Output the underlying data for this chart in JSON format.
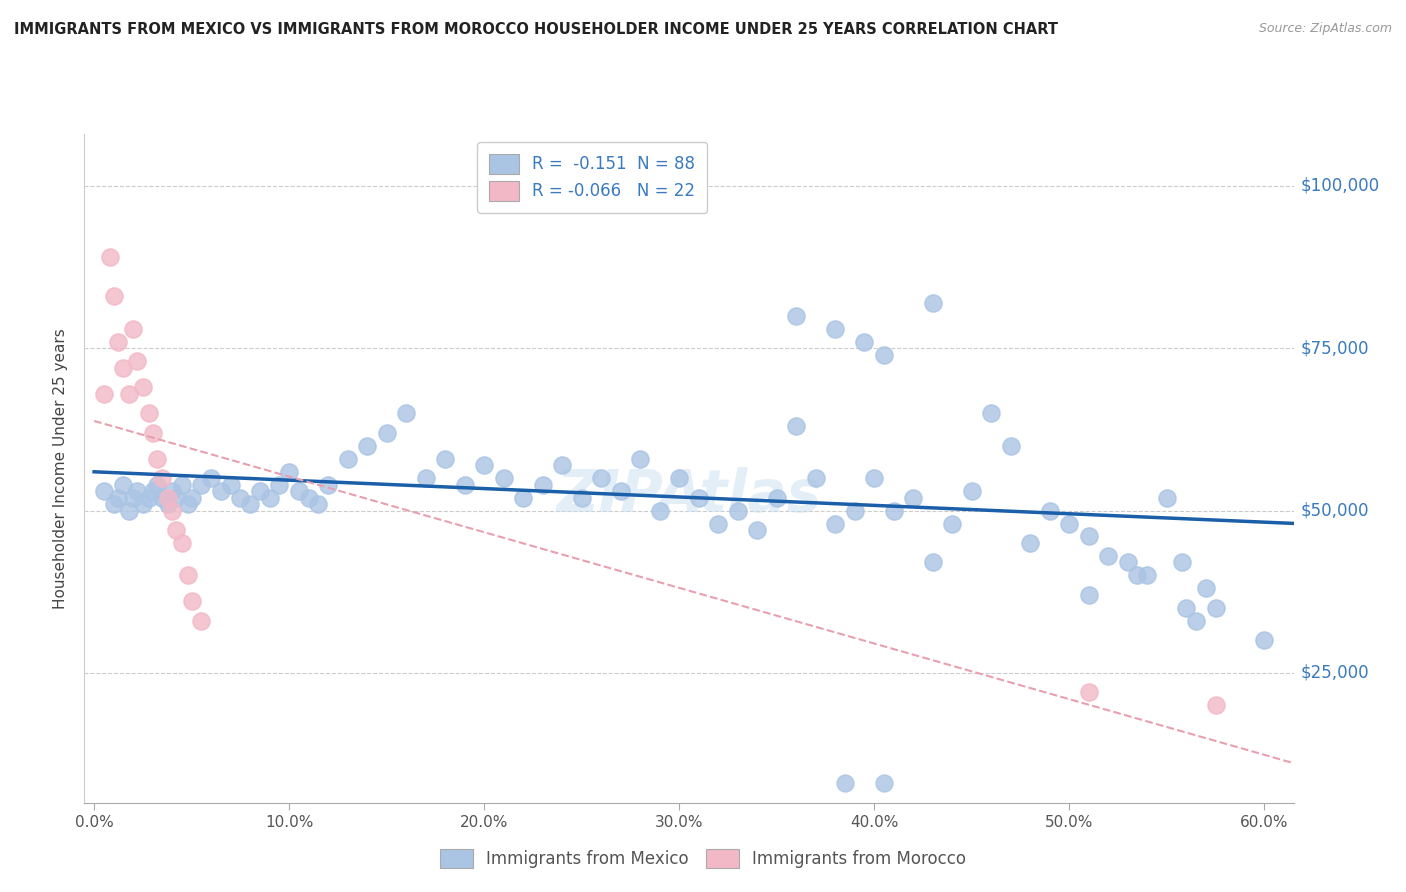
{
  "title": "IMMIGRANTS FROM MEXICO VS IMMIGRANTS FROM MOROCCO HOUSEHOLDER INCOME UNDER 25 YEARS CORRELATION CHART",
  "source": "Source: ZipAtlas.com",
  "xlabel_ticks": [
    "0.0%",
    "",
    "",
    "",
    "",
    "",
    "",
    "",
    "",
    "",
    "10.0%",
    "",
    "",
    "",
    "",
    "",
    "",
    "",
    "",
    "",
    "20.0%",
    "",
    "",
    "",
    "",
    "",
    "",
    "",
    "",
    "",
    "30.0%",
    "",
    "",
    "",
    "",
    "",
    "",
    "",
    "",
    "",
    "40.0%",
    "",
    "",
    "",
    "",
    "",
    "",
    "",
    "",
    "",
    "50.0%",
    "",
    "",
    "",
    "",
    "",
    "",
    "",
    "",
    "",
    "60.0%"
  ],
  "xlabel_vals": [
    0.0,
    0.1,
    0.2,
    0.3,
    0.4,
    0.5,
    0.6
  ],
  "ylabel": "Householder Income Under 25 years",
  "ylabel_ticks_right": [
    "$100,000",
    "$75,000",
    "$50,000",
    "$25,000"
  ],
  "ylabel_vals": [
    100000,
    75000,
    50000,
    25000
  ],
  "xlim": [
    -0.005,
    0.615
  ],
  "ylim": [
    5000,
    108000
  ],
  "ylim_plot": [
    5000,
    108000
  ],
  "mexico_color": "#aac4e4",
  "morocco_color": "#f2b8c6",
  "mexico_line_color": "#1a5fa8",
  "morocco_line_color": "#e8a0b0",
  "R_mexico": -0.151,
  "N_mexico": 88,
  "R_morocco": -0.066,
  "N_morocco": 22,
  "legend_label_mexico": "Immigrants from Mexico",
  "legend_label_morocco": "Immigrants from Morocco",
  "watermark": "ZIPAtlas",
  "mexico_x": [
    0.005,
    0.01,
    0.012,
    0.015,
    0.018,
    0.02,
    0.022,
    0.025,
    0.028,
    0.03,
    0.032,
    0.035,
    0.038,
    0.04,
    0.042,
    0.045,
    0.048,
    0.05,
    0.055,
    0.06,
    0.065,
    0.07,
    0.075,
    0.08,
    0.085,
    0.09,
    0.095,
    0.1,
    0.105,
    0.11,
    0.115,
    0.12,
    0.13,
    0.14,
    0.15,
    0.16,
    0.17,
    0.18,
    0.19,
    0.2,
    0.21,
    0.22,
    0.23,
    0.24,
    0.25,
    0.26,
    0.27,
    0.28,
    0.29,
    0.3,
    0.31,
    0.32,
    0.33,
    0.34,
    0.35,
    0.36,
    0.37,
    0.38,
    0.39,
    0.4,
    0.41,
    0.42,
    0.43,
    0.44,
    0.45,
    0.46,
    0.47,
    0.48,
    0.49,
    0.5,
    0.51,
    0.52,
    0.53,
    0.54,
    0.55,
    0.36,
    0.38,
    0.43,
    0.395,
    0.405,
    0.57,
    0.575,
    0.51,
    0.535,
    0.558,
    0.56,
    0.565,
    0.6
  ],
  "mexico_y": [
    53000,
    51000,
    52000,
    54000,
    50000,
    52000,
    53000,
    51000,
    52000,
    53000,
    54000,
    52000,
    51000,
    53000,
    52000,
    54000,
    51000,
    52000,
    54000,
    55000,
    53000,
    54000,
    52000,
    51000,
    53000,
    52000,
    54000,
    56000,
    53000,
    52000,
    51000,
    54000,
    58000,
    60000,
    62000,
    65000,
    55000,
    58000,
    54000,
    57000,
    55000,
    52000,
    54000,
    57000,
    52000,
    55000,
    53000,
    58000,
    50000,
    55000,
    52000,
    48000,
    50000,
    47000,
    52000,
    63000,
    55000,
    48000,
    50000,
    55000,
    50000,
    52000,
    42000,
    48000,
    53000,
    65000,
    60000,
    45000,
    50000,
    48000,
    46000,
    43000,
    42000,
    40000,
    52000,
    80000,
    78000,
    82000,
    76000,
    74000,
    38000,
    35000,
    37000,
    40000,
    42000,
    35000,
    33000,
    30000
  ],
  "morocco_x": [
    0.005,
    0.008,
    0.01,
    0.012,
    0.015,
    0.018,
    0.02,
    0.022,
    0.025,
    0.028,
    0.03,
    0.032,
    0.035,
    0.038,
    0.04,
    0.042,
    0.045,
    0.048,
    0.05,
    0.055,
    0.51,
    0.575
  ],
  "morocco_y": [
    68000,
    89000,
    83000,
    76000,
    72000,
    68000,
    78000,
    73000,
    69000,
    65000,
    62000,
    58000,
    55000,
    52000,
    50000,
    47000,
    45000,
    40000,
    36000,
    33000,
    22000,
    20000
  ]
}
